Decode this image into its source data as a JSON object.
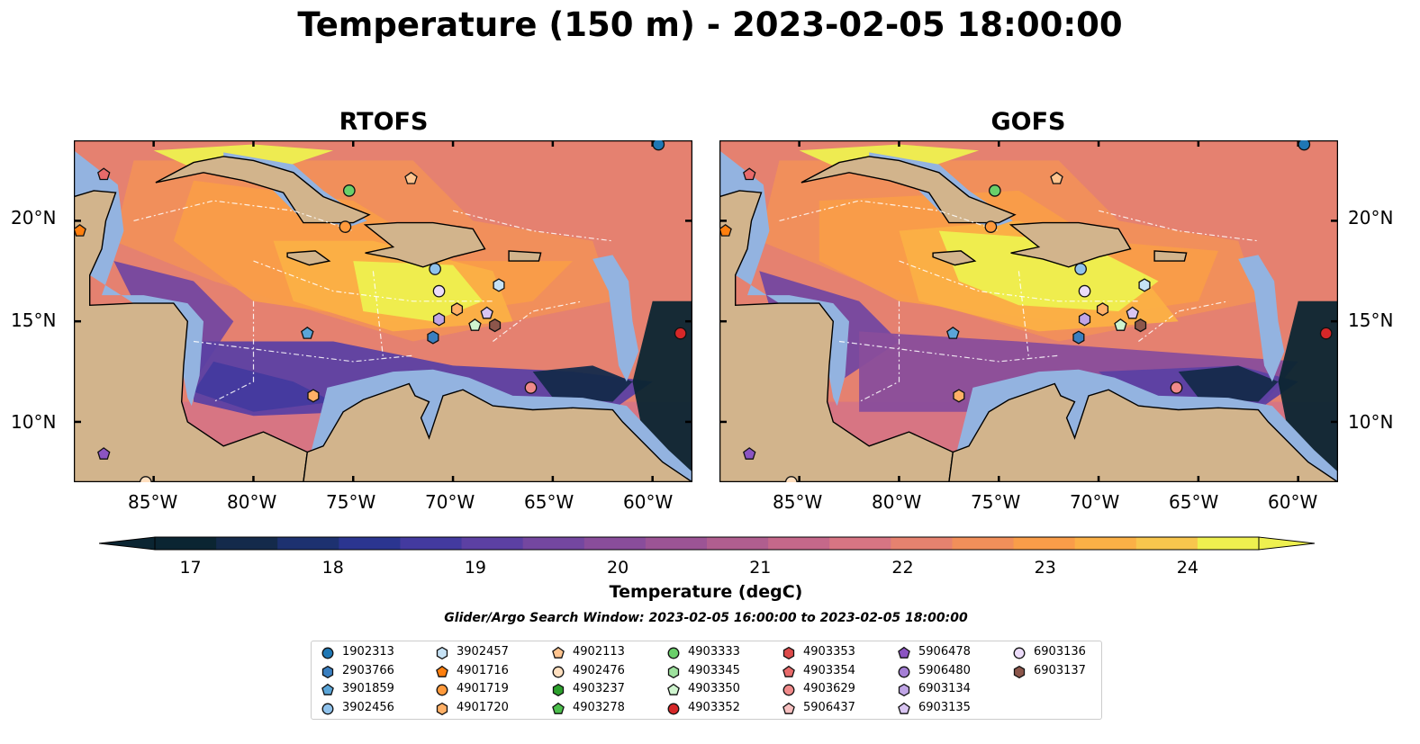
{
  "title": "Temperature (150 m) - 2023-02-05 18:00:00",
  "panels": [
    {
      "title": "RTOFS"
    },
    {
      "title": "GOFS"
    }
  ],
  "axes": {
    "lon_labels": [
      "85°W",
      "80°W",
      "75°W",
      "70°W",
      "65°W",
      "60°W"
    ],
    "lat_labels": [
      "20°N",
      "15°N",
      "10°N"
    ]
  },
  "colorbar": {
    "label": "Temperature (degC)",
    "ticks": [
      "17",
      "18",
      "19",
      "20",
      "21",
      "22",
      "23",
      "24"
    ],
    "range": [
      16.75,
      24.5
    ],
    "extend": "both",
    "colors": [
      "#0b2532",
      "#142a4b",
      "#1d3170",
      "#2b3590",
      "#433a9f",
      "#5c40a3",
      "#7447a0",
      "#894d9b",
      "#9c5495",
      "#b05e8f",
      "#c5688a",
      "#d77583",
      "#e6826f",
      "#f18f5a",
      "#f99d49",
      "#fbb046",
      "#f8c64d",
      "#eef04f"
    ]
  },
  "search_window": "Glider/Argo Search Window: 2023-02-05 16:00:00 to 2023-02-05 18:00:00",
  "platforms": [
    {
      "id": "1902313",
      "marker": "circle",
      "color": "#1f77b4"
    },
    {
      "id": "2903766",
      "marker": "hexagon",
      "color": "#3a7fc0"
    },
    {
      "id": "3901859",
      "marker": "pentagon",
      "color": "#5aa5d8"
    },
    {
      "id": "3902456",
      "marker": "circle",
      "color": "#8fc2ec"
    },
    {
      "id": "3902457",
      "marker": "hexagon",
      "color": "#c6e2f5"
    },
    {
      "id": "4901716",
      "marker": "pentagon",
      "color": "#ff7f0e"
    },
    {
      "id": "4901719",
      "marker": "circle",
      "color": "#ff9a3c"
    },
    {
      "id": "4901720",
      "marker": "hexagon",
      "color": "#ffb066"
    },
    {
      "id": "4902113",
      "marker": "pentagon",
      "color": "#ffc48f"
    },
    {
      "id": "4902476",
      "marker": "circle",
      "color": "#ffdfbf"
    },
    {
      "id": "4903237",
      "marker": "hexagon",
      "color": "#2ca02c"
    },
    {
      "id": "4903278",
      "marker": "pentagon",
      "color": "#4cbf4c"
    },
    {
      "id": "4903333",
      "marker": "circle",
      "color": "#6acf6a"
    },
    {
      "id": "4903345",
      "marker": "hexagon",
      "color": "#9ee29e"
    },
    {
      "id": "4903350",
      "marker": "pentagon",
      "color": "#cff5cf"
    },
    {
      "id": "4903352",
      "marker": "circle",
      "color": "#d62728"
    },
    {
      "id": "4903353",
      "marker": "hexagon",
      "color": "#dd4a4a"
    },
    {
      "id": "4903354",
      "marker": "pentagon",
      "color": "#e86a6a"
    },
    {
      "id": "4903629",
      "marker": "circle",
      "color": "#f08a8a"
    },
    {
      "id": "5906437",
      "marker": "pentagon",
      "color": "#f7c0c0"
    },
    {
      "id": "5906478",
      "marker": "pentagon",
      "color": "#8b54c2"
    },
    {
      "id": "5906480",
      "marker": "circle",
      "color": "#a57fd6"
    },
    {
      "id": "6903134",
      "marker": "hexagon",
      "color": "#c0a5e6"
    },
    {
      "id": "6903135",
      "marker": "pentagon",
      "color": "#d9c5f2"
    },
    {
      "id": "6903136",
      "marker": "circle",
      "color": "#ecdcfa"
    },
    {
      "id": "6903137",
      "marker": "hexagon",
      "color": "#8c564b"
    }
  ],
  "map_markers": [
    {
      "platform": "4903354",
      "lon": -87.5,
      "lat": 22.3
    },
    {
      "platform": "4901716",
      "lon": -88.7,
      "lat": 19.5
    },
    {
      "platform": "4903333",
      "lon": -75.2,
      "lat": 21.5
    },
    {
      "platform": "4901719",
      "lon": -75.4,
      "lat": 19.7
    },
    {
      "platform": "4902113",
      "lon": -72.1,
      "lat": 22.1
    },
    {
      "platform": "1902313",
      "lon": -59.7,
      "lat": 23.8
    },
    {
      "platform": "3902456",
      "lon": -70.9,
      "lat": 17.6
    },
    {
      "platform": "6903136",
      "lon": -70.7,
      "lat": 16.5
    },
    {
      "platform": "3902457",
      "lon": -67.7,
      "lat": 16.8
    },
    {
      "platform": "4901720",
      "lon": -69.8,
      "lat": 15.6
    },
    {
      "platform": "6903134",
      "lon": -70.7,
      "lat": 15.1
    },
    {
      "platform": "6903135",
      "lon": -68.3,
      "lat": 15.4
    },
    {
      "platform": "4903350",
      "lon": -68.9,
      "lat": 14.8
    },
    {
      "platform": "6903137",
      "lon": -67.9,
      "lat": 14.8
    },
    {
      "platform": "2903766",
      "lon": -71.0,
      "lat": 14.2
    },
    {
      "platform": "3901859",
      "lon": -77.3,
      "lat": 14.4
    },
    {
      "platform": "4901720",
      "lon": -77.0,
      "lat": 11.3
    },
    {
      "platform": "4903629",
      "lon": -66.1,
      "lat": 11.7
    },
    {
      "platform": "4903352",
      "lon": -58.6,
      "lat": 14.4
    },
    {
      "platform": "5906478",
      "lon": -87.5,
      "lat": 8.4
    },
    {
      "platform": "4902476",
      "lon": -85.4,
      "lat": 7.0
    }
  ]
}
